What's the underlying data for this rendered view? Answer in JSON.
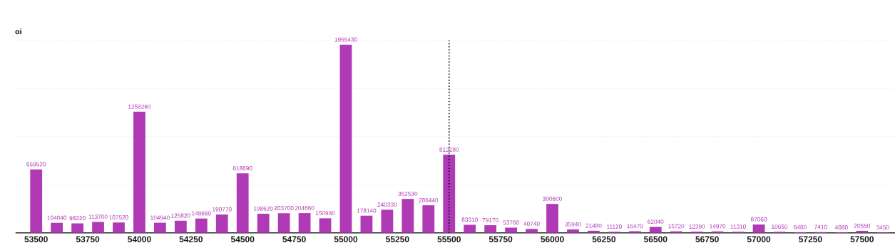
{
  "chart_data": {
    "type": "bar",
    "ylabel": "oi",
    "x": [
      53500,
      53600,
      53700,
      53800,
      53900,
      54000,
      54100,
      54200,
      54300,
      54400,
      54500,
      54600,
      54700,
      54800,
      54900,
      55000,
      55100,
      55200,
      55300,
      55400,
      55500,
      55600,
      55700,
      55800,
      55900,
      56000,
      56100,
      56200,
      56300,
      56400,
      56500,
      56600,
      56700,
      56800,
      56900,
      57000,
      57100,
      57200,
      57300,
      57400,
      57500,
      57600
    ],
    "values": [
      659520,
      104040,
      98220,
      113700,
      107520,
      1258260,
      104940,
      125820,
      148680,
      190770,
      618690,
      198620,
      203700,
      204660,
      150930,
      1955430,
      178140,
      240330,
      352530,
      286440,
      812280,
      83310,
      79170,
      53760,
      40740,
      300600,
      35940,
      21480,
      11120,
      16470,
      62040,
      15720,
      12390,
      14970,
      11310,
      87060,
      10650,
      6480,
      7410,
      4080,
      20550,
      3450
    ],
    "color": "#b03ab5",
    "data_labels": true,
    "xlim": [
      53400,
      57700
    ],
    "xticks": [
      53500,
      53750,
      54000,
      54250,
      54500,
      54750,
      55000,
      55250,
      55500,
      55750,
      56000,
      56250,
      56500,
      56750,
      57000,
      57250,
      57500
    ],
    "ylim": [
      0,
      2000000
    ],
    "yticks": [
      {
        "value": 500000,
        "label": null
      },
      {
        "value": 1000000,
        "label": null
      },
      {
        "value": 1500000,
        "label": null
      },
      {
        "value": 2000000,
        "label": null
      }
    ],
    "tick_labels": "x",
    "grid": "y",
    "ref_lines": [
      {
        "axis": "x",
        "value": 55500,
        "color": "#000000",
        "line_style": "dotted"
      }
    ]
  }
}
